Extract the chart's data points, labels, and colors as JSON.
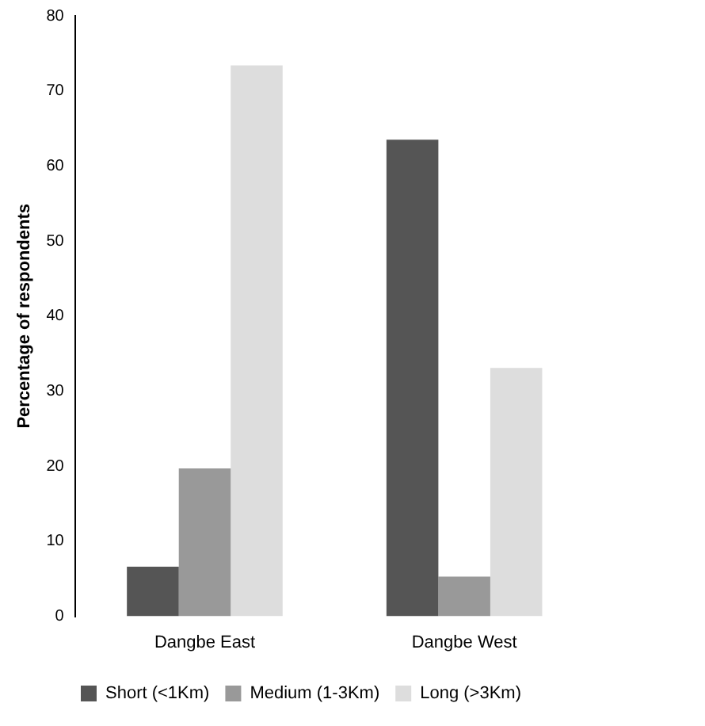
{
  "chart_data": {
    "type": "bar",
    "ylabel": "Percentage of respondents",
    "categories": [
      "Dangbe East",
      "Dangbe West"
    ],
    "series": [
      {
        "name": "Short (<1Km)",
        "color": "#555555",
        "values": [
          6.6,
          63.5
        ]
      },
      {
        "name": "Medium (1-3Km)",
        "color": "#999999",
        "values": [
          19.7,
          5.3
        ]
      },
      {
        "name": "Long (>3Km)",
        "color": "#dddddd",
        "values": [
          73.4,
          33.1
        ]
      }
    ],
    "ylim": [
      0,
      80
    ],
    "yticks": [
      0,
      10,
      20,
      30,
      40,
      50,
      60,
      70,
      80
    ],
    "grid": false,
    "legend": "bottom"
  }
}
